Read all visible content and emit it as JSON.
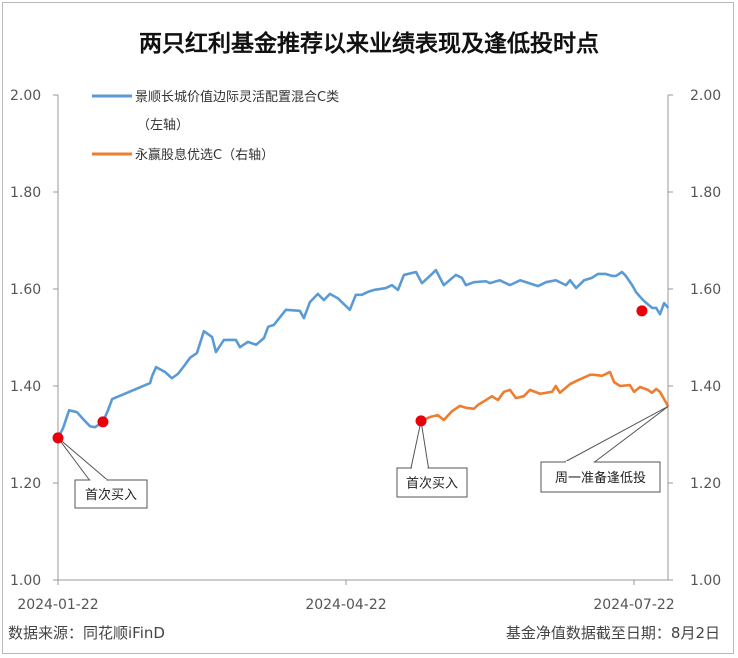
{
  "chart_data": {
    "type": "line",
    "title": "两只红利基金推荐以来业绩表现及逢低投时点",
    "x_unit": "days since 2024-01-22",
    "x_ticks": [
      {
        "day": 0,
        "label": "2024-01-22"
      },
      {
        "day": 91,
        "label": "2024-04-22"
      },
      {
        "day": 182,
        "label": "2024-07-22"
      }
    ],
    "xlim": [
      0,
      193
    ],
    "ylim_left": [
      1.0,
      2.0
    ],
    "ylim_right": [
      1.0,
      2.0
    ],
    "y_ticks": [
      "1.00",
      "1.20",
      "1.40",
      "1.60",
      "1.80",
      "2.00"
    ],
    "legend": {
      "position": "top-left"
    },
    "series": [
      {
        "name": "景顺长城价值边际灵活配置混合C类",
        "name_line2": "（左轴）",
        "axis": "left",
        "color": "#5b9bd5",
        "points": [
          [
            0,
            1.293
          ],
          [
            1.6,
            1.313
          ],
          [
            3.5,
            1.35
          ],
          [
            6,
            1.346
          ],
          [
            8.2,
            1.33
          ],
          [
            10.1,
            1.317
          ],
          [
            11.7,
            1.315
          ],
          [
            14.2,
            1.326
          ],
          [
            15.8,
            1.35
          ],
          [
            17.1,
            1.373
          ],
          [
            29.1,
            1.406
          ],
          [
            29.7,
            1.42
          ],
          [
            31,
            1.439
          ],
          [
            33.8,
            1.429
          ],
          [
            36,
            1.416
          ],
          [
            37.9,
            1.425
          ],
          [
            39.8,
            1.441
          ],
          [
            41.7,
            1.458
          ],
          [
            43.9,
            1.468
          ],
          [
            46.1,
            1.513
          ],
          [
            48.7,
            1.501
          ],
          [
            49.9,
            1.47
          ],
          [
            52.4,
            1.495
          ],
          [
            56.2,
            1.495
          ],
          [
            57.5,
            1.48
          ],
          [
            60,
            1.491
          ],
          [
            62.6,
            1.485
          ],
          [
            65.1,
            1.499
          ],
          [
            66.4,
            1.522
          ],
          [
            68.2,
            1.526
          ],
          [
            72,
            1.557
          ],
          [
            76.4,
            1.555
          ],
          [
            77.7,
            1.54
          ],
          [
            79.6,
            1.573
          ],
          [
            82.1,
            1.59
          ],
          [
            84,
            1.577
          ],
          [
            85.9,
            1.59
          ],
          [
            88.4,
            1.581
          ],
          [
            92.2,
            1.557
          ],
          [
            94.1,
            1.588
          ],
          [
            96,
            1.588
          ],
          [
            97.9,
            1.594
          ],
          [
            99.8,
            1.598
          ],
          [
            103.6,
            1.602
          ],
          [
            105.5,
            1.608
          ],
          [
            107.4,
            1.598
          ],
          [
            109.3,
            1.629
          ],
          [
            113.1,
            1.635
          ],
          [
            115,
            1.612
          ],
          [
            117.5,
            1.627
          ],
          [
            119.4,
            1.639
          ],
          [
            121.9,
            1.608
          ],
          [
            125.7,
            1.629
          ],
          [
            127.6,
            1.623
          ],
          [
            128.9,
            1.608
          ],
          [
            131.4,
            1.614
          ],
          [
            135.2,
            1.616
          ],
          [
            136.5,
            1.612
          ],
          [
            139.6,
            1.618
          ],
          [
            142.8,
            1.608
          ],
          [
            146,
            1.618
          ],
          [
            151.7,
            1.606
          ],
          [
            154.2,
            1.614
          ],
          [
            157.3,
            1.618
          ],
          [
            160.5,
            1.608
          ],
          [
            161.8,
            1.618
          ],
          [
            163.7,
            1.602
          ],
          [
            166.2,
            1.618
          ],
          [
            168.7,
            1.623
          ],
          [
            170.6,
            1.631
          ],
          [
            173.1,
            1.631
          ],
          [
            175,
            1.627
          ],
          [
            176.3,
            1.627
          ],
          [
            178.2,
            1.635
          ],
          [
            179.4,
            1.627
          ],
          [
            181.4,
            1.608
          ],
          [
            182.6,
            1.594
          ],
          [
            183.9,
            1.584
          ],
          [
            185.2,
            1.575
          ],
          [
            187.7,
            1.561
          ],
          [
            189,
            1.561
          ],
          [
            190.2,
            1.548
          ],
          [
            191.5,
            1.571
          ],
          [
            192.8,
            1.561
          ]
        ],
        "markers": [
          [
            0,
            1.293
          ],
          [
            14.2,
            1.326
          ],
          [
            184.5,
            1.555
          ]
        ]
      },
      {
        "name": "永赢股息优选C",
        "name_suffix": "（右轴）",
        "axis": "right",
        "color": "#ed7d31",
        "points": [
          [
            114.7,
            1.328
          ],
          [
            117.5,
            1.336
          ],
          [
            120,
            1.34
          ],
          [
            121.9,
            1.33
          ],
          [
            124.5,
            1.348
          ],
          [
            127,
            1.359
          ],
          [
            128.9,
            1.355
          ],
          [
            131.4,
            1.353
          ],
          [
            132.7,
            1.361
          ],
          [
            135.2,
            1.371
          ],
          [
            137.1,
            1.379
          ],
          [
            139,
            1.371
          ],
          [
            140.9,
            1.388
          ],
          [
            142.8,
            1.392
          ],
          [
            144.7,
            1.375
          ],
          [
            147.2,
            1.379
          ],
          [
            149.1,
            1.392
          ],
          [
            152.3,
            1.384
          ],
          [
            156.1,
            1.388
          ],
          [
            157.3,
            1.4
          ],
          [
            158.6,
            1.386
          ],
          [
            161.8,
            1.404
          ],
          [
            164.3,
            1.412
          ],
          [
            168.1,
            1.423
          ],
          [
            169.4,
            1.423
          ],
          [
            171.9,
            1.421
          ],
          [
            174.4,
            1.429
          ],
          [
            175.7,
            1.408
          ],
          [
            177.6,
            1.4
          ],
          [
            180.7,
            1.402
          ],
          [
            182,
            1.388
          ],
          [
            183.9,
            1.398
          ],
          [
            186.4,
            1.392
          ],
          [
            187.7,
            1.386
          ],
          [
            189,
            1.394
          ],
          [
            190.2,
            1.388
          ],
          [
            191.5,
            1.373
          ],
          [
            192.8,
            1.358
          ]
        ],
        "markers": [
          [
            114.7,
            1.328
          ]
        ]
      }
    ],
    "annotations": [
      {
        "text": "首次买入",
        "series": 0,
        "day": 0
      },
      {
        "text": "首次买入",
        "series": 1,
        "day": 114.7
      },
      {
        "text": "周一准备逢低投",
        "series": 1,
        "day": 192.8
      }
    ]
  },
  "footer": {
    "source": "数据来源：同花顺iFinD",
    "date": "基金净值数据截至日期：8月2日"
  }
}
